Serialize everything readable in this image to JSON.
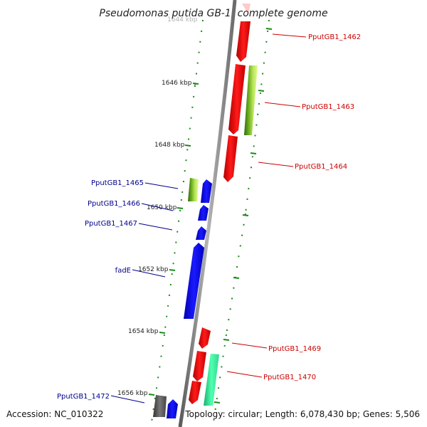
{
  "title": "Pseudomonas putida GB-1, complete genome",
  "footer": {
    "accession": "Accession: NC_010322",
    "topology": "Topology: circular; Length: 6,078,430 bp; Genes: 5,506"
  },
  "ticks": {
    "faded_top": "1644 kbp",
    "labels": [
      "1646 kbp",
      "1648 kbp",
      "1650 kbp",
      "1652 kbp",
      "1654 kbp",
      "1656 kbp"
    ]
  },
  "genes": {
    "right_strand": [
      "PputGB1_1462",
      "PputGB1_1463",
      "PputGB1_1464",
      "PputGB1_1469",
      "PputGB1_1470"
    ],
    "left_strand": [
      "PputGB1_1465",
      "PputGB1_1466",
      "PputGB1_1467",
      "fadE",
      "PputGB1_1472"
    ]
  },
  "colors": {
    "axis": "#888888",
    "forward_gene": "#ff0000",
    "reverse_gene": "#0000ff",
    "right_label": "#cc0000",
    "left_label": "#00008b",
    "tick": "#228b22",
    "green_gene": "#9acd32",
    "teal_gene": "#40e0a0",
    "gray_gene": "#555555"
  }
}
